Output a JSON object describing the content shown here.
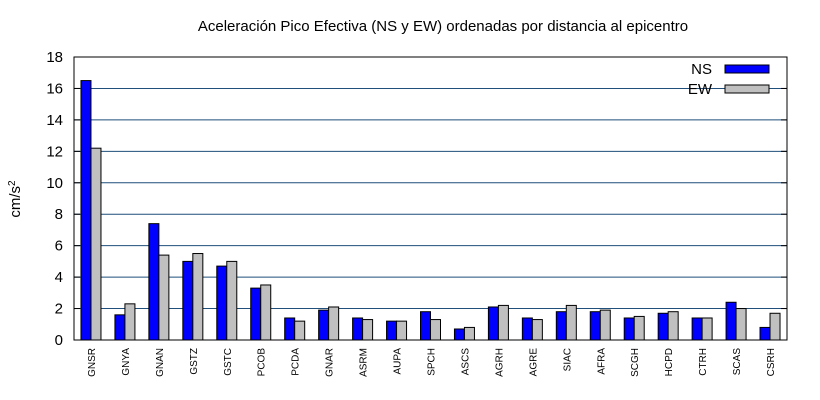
{
  "chart_data": {
    "type": "bar",
    "title": "Aceleración Pico Efectiva (NS y EW) ordenadas por distancia al epicentro",
    "xlabel": "",
    "ylabel": "cm/s",
    "ylabel_sup": "2",
    "ylim": [
      0,
      18
    ],
    "yticks": [
      "0",
      "2",
      "4",
      "6",
      "8",
      "10",
      "12",
      "14",
      "16",
      "18"
    ],
    "grid": "horizontal",
    "legend_position": "top-right",
    "categories": [
      "GNSR",
      "GNYA",
      "GNAN",
      "GSTZ",
      "GSTC",
      "PCOB",
      "PCDA",
      "GNAR",
      "ASRM",
      "AUPA",
      "SPCH",
      "ASCS",
      "AGRH",
      "AGRE",
      "SIAC",
      "AFRA",
      "SCGH",
      "HCPD",
      "CTRH",
      "SCAS",
      "CSRH"
    ],
    "series": [
      {
        "name": "NS",
        "color": "#0000ff",
        "values": [
          16.5,
          1.6,
          7.4,
          5.0,
          4.7,
          3.3,
          1.4,
          1.9,
          1.4,
          1.2,
          1.8,
          0.7,
          2.1,
          1.4,
          1.8,
          1.8,
          1.4,
          1.7,
          1.4,
          2.4,
          0.8
        ]
      },
      {
        "name": "EW",
        "color": "#c0c0c0",
        "values": [
          12.2,
          2.3,
          5.4,
          5.5,
          5.0,
          3.5,
          1.2,
          2.1,
          1.3,
          1.2,
          1.3,
          0.8,
          2.2,
          1.3,
          2.2,
          1.9,
          1.5,
          1.8,
          1.4,
          2.0,
          1.7
        ]
      }
    ]
  }
}
